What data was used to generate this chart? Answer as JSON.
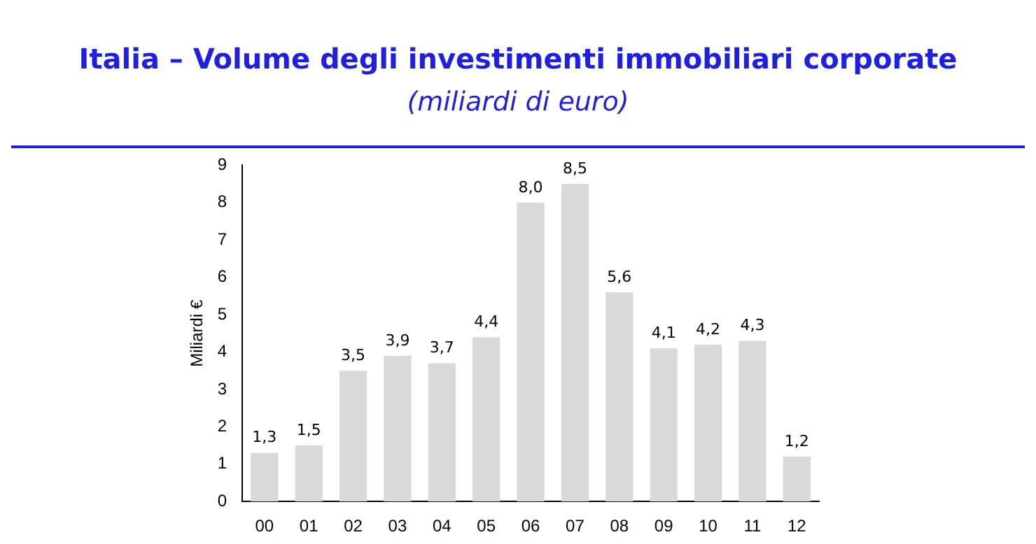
{
  "chart_data": {
    "type": "bar",
    "title": "Italia – Volume degli investimenti immobiliari corporate",
    "subtitle": "(miliardi di euro)",
    "ylabel": "Miliardi €",
    "categories": [
      "00",
      "01",
      "02",
      "03",
      "04",
      "05",
      "06",
      "07",
      "08",
      "09",
      "10",
      "11",
      "12"
    ],
    "values": [
      1.3,
      1.5,
      3.5,
      3.9,
      3.7,
      4.4,
      8.0,
      8.5,
      5.6,
      4.1,
      4.2,
      4.3,
      1.2
    ],
    "value_labels": [
      "1,3",
      "1,5",
      "3,5",
      "3,9",
      "3,7",
      "4,4",
      "8,0",
      "8,5",
      "5,6",
      "4,1",
      "4,2",
      "4,3",
      "1,2"
    ],
    "color": "#d9d9d9",
    "ylim": [
      0,
      9
    ],
    "yticks": [
      0,
      1,
      2,
      3,
      4,
      5,
      6,
      7,
      8,
      9
    ],
    "grid": false,
    "legend": false
  }
}
